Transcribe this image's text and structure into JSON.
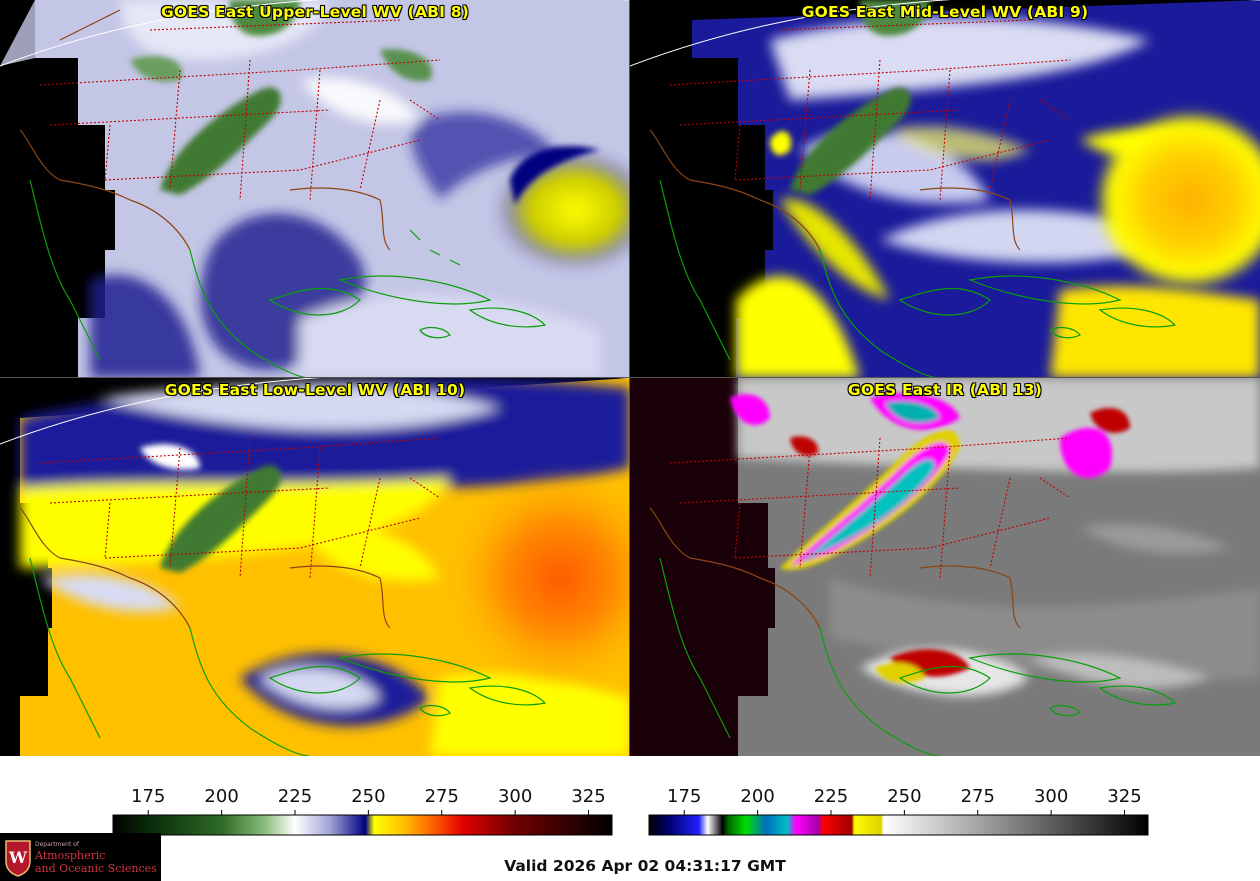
{
  "panels": [
    {
      "title": "GOES East Upper-Level WV (ABI 8)",
      "scheme": "wv-upper"
    },
    {
      "title": "GOES East Mid-Level WV (ABI 9)",
      "scheme": "wv-mid"
    },
    {
      "title": "GOES East Low-Level WV (ABI 10)",
      "scheme": "wv-low"
    },
    {
      "title": "GOES East IR (ABI 13)",
      "scheme": "ir"
    }
  ],
  "colorbars": [
    {
      "name": "water-vapor-colorbar",
      "ticks": [
        "175",
        "200",
        "225",
        "250",
        "275",
        "300",
        "325"
      ],
      "range": [
        163,
        333
      ],
      "stops": [
        [
          163,
          "#000000"
        ],
        [
          175,
          "#0a2a0a"
        ],
        [
          200,
          "#2e6b25"
        ],
        [
          215,
          "#8cbf7d"
        ],
        [
          225,
          "#ffffff"
        ],
        [
          237,
          "#9fa3d6"
        ],
        [
          249,
          "#000080"
        ],
        [
          252,
          "#ffff00"
        ],
        [
          262,
          "#ffc000"
        ],
        [
          272,
          "#ff6000"
        ],
        [
          282,
          "#e00000"
        ],
        [
          300,
          "#700000"
        ],
        [
          333,
          "#000000"
        ]
      ]
    },
    {
      "name": "infrared-colorbar",
      "ticks": [
        "175",
        "200",
        "225",
        "250",
        "275",
        "300",
        "325"
      ],
      "range": [
        163,
        333
      ],
      "stops": [
        [
          163,
          "#000000"
        ],
        [
          170,
          "#000070"
        ],
        [
          180,
          "#2020ff"
        ],
        [
          183,
          "#ffffff"
        ],
        [
          188,
          "#000000"
        ],
        [
          190,
          "#006600"
        ],
        [
          196,
          "#00dd00"
        ],
        [
          203,
          "#0070c0"
        ],
        [
          210,
          "#00c0c0"
        ],
        [
          213,
          "#ff00ff"
        ],
        [
          221,
          "#a000a0"
        ],
        [
          222,
          "#ff0000"
        ],
        [
          232,
          "#a00000"
        ],
        [
          233,
          "#ffff00"
        ],
        [
          242,
          "#e0d000"
        ],
        [
          243,
          "#ffffff"
        ],
        [
          333,
          "#000000"
        ]
      ]
    }
  ],
  "valid_time": "Valid 2026 Apr 02 04:31:17 GMT",
  "logo": {
    "line0": "Department of",
    "line1": "Atmospheric",
    "line2": "and Oceanic Sciences",
    "seal_letter": "W"
  }
}
